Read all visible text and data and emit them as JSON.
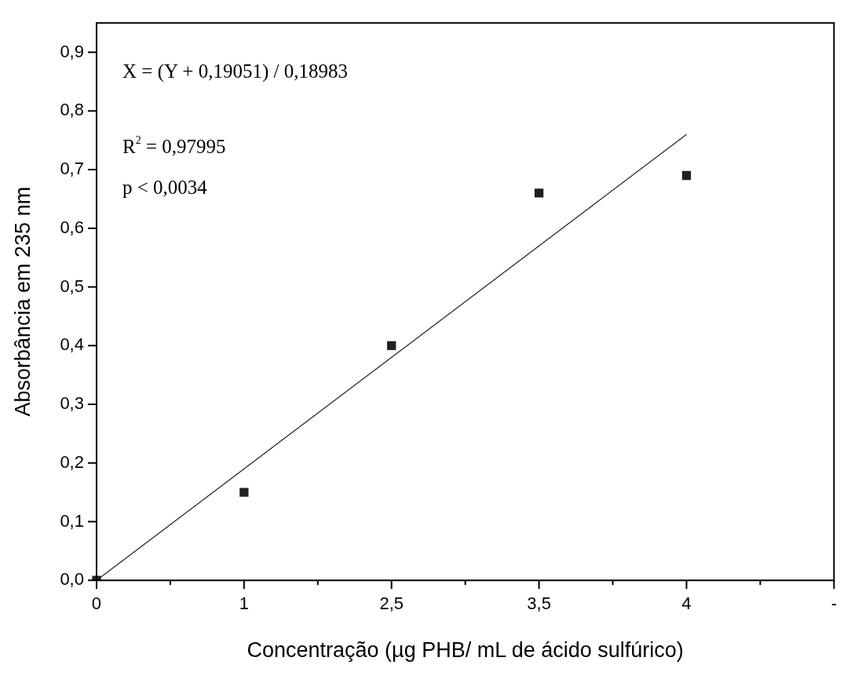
{
  "chart_data": {
    "type": "scatter",
    "xlabel": "Concentração (µg PHB/ mL de ácido sulfúrico)",
    "ylabel": "Absorbância em 235 nm",
    "categories": [
      "0",
      "1",
      "2,5",
      "3,5",
      "4",
      "-"
    ],
    "series": [
      {
        "type": "scatter",
        "color": "#231f20",
        "marker": "square",
        "values": [
          0,
          0.15,
          0.4,
          0.66,
          0.69,
          null
        ]
      },
      {
        "type": "line",
        "color": "#231f20",
        "marker": "none",
        "line_style": "solid",
        "values": [
          0,
          0.19,
          0.38,
          0.57,
          0.76,
          null
        ]
      }
    ],
    "ylim": [
      0,
      0.95
    ],
    "yticks": [
      {
        "value": 0,
        "label": "0,0"
      },
      {
        "value": 0.1,
        "label": "0,1"
      },
      {
        "value": 0.2,
        "label": "0,2"
      },
      {
        "value": 0.3,
        "label": "0,3"
      },
      {
        "value": 0.4,
        "label": "0,4"
      },
      {
        "value": 0.5,
        "label": "0,5"
      },
      {
        "value": 0.6,
        "label": "0,6"
      },
      {
        "value": 0.7,
        "label": "0,7"
      },
      {
        "value": 0.8,
        "label": "0,8"
      },
      {
        "value": 0.9,
        "label": "0,9"
      }
    ],
    "annotations": [
      "X = (Y + 0,19051) / 0,18983",
      "R$^{2}$ = 0,97995",
      "p < 0,0034"
    ],
    "grid": false,
    "legend": false
  }
}
